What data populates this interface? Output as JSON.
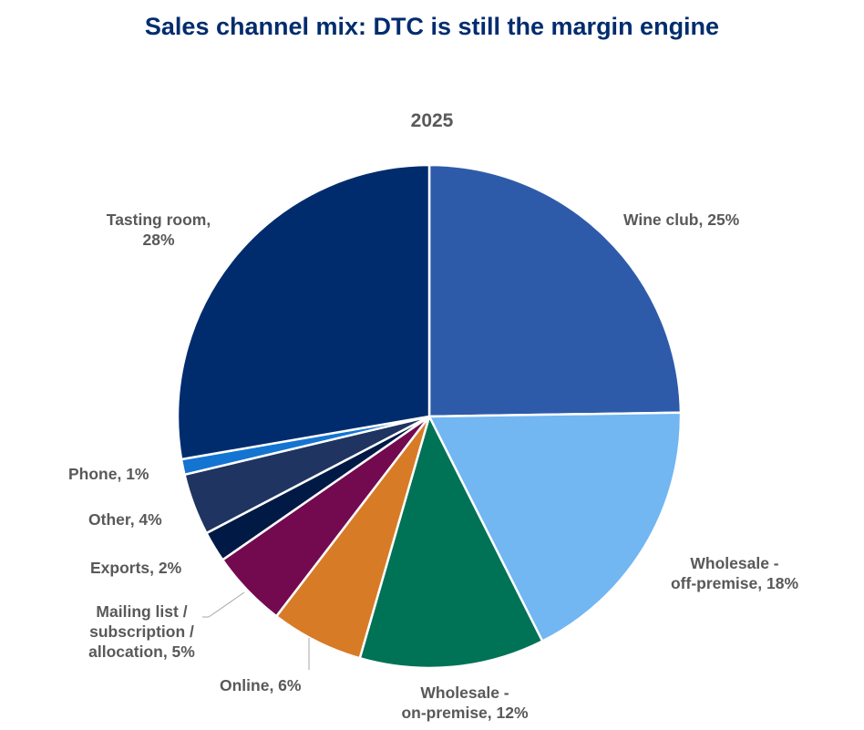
{
  "chart_data": {
    "type": "pie",
    "title": "Sales channel mix: DTC is still the margin engine",
    "subtitle": "2025",
    "start_angle": "12 o'clock",
    "direction": "clockwise",
    "slices": [
      {
        "label": "Wine club",
        "value": 25,
        "color": "#2E5BA9",
        "data_label": "Wine club, 25%"
      },
      {
        "label": "Wholesale - off-premise",
        "value": 18,
        "color": "#72B6F2",
        "data_label": "Wholesale -\noff-premise, 18%"
      },
      {
        "label": "Wholesale - on-premise",
        "value": 12,
        "color": "#007256",
        "data_label": "Wholesale -\non-premise, 12%"
      },
      {
        "label": "Online",
        "value": 6,
        "color": "#D77B27",
        "data_label": "Online, 6%"
      },
      {
        "label": "Mailing list / subscription / allocation",
        "value": 5,
        "color": "#730A50",
        "data_label": "Mailing list /\nsubscription /\nallocation, 5%"
      },
      {
        "label": "Exports",
        "value": 2,
        "color": "#001A45",
        "data_label": "Exports, 2%"
      },
      {
        "label": "Other",
        "value": 4,
        "color": "#1F3460",
        "data_label": "Other, 4%"
      },
      {
        "label": "Phone",
        "value": 1,
        "color": "#1474D1",
        "data_label": "Phone, 1%"
      },
      {
        "label": "Tasting room",
        "value": 28,
        "color": "#002C6E",
        "data_label": "Tasting room,\n28%"
      }
    ]
  }
}
